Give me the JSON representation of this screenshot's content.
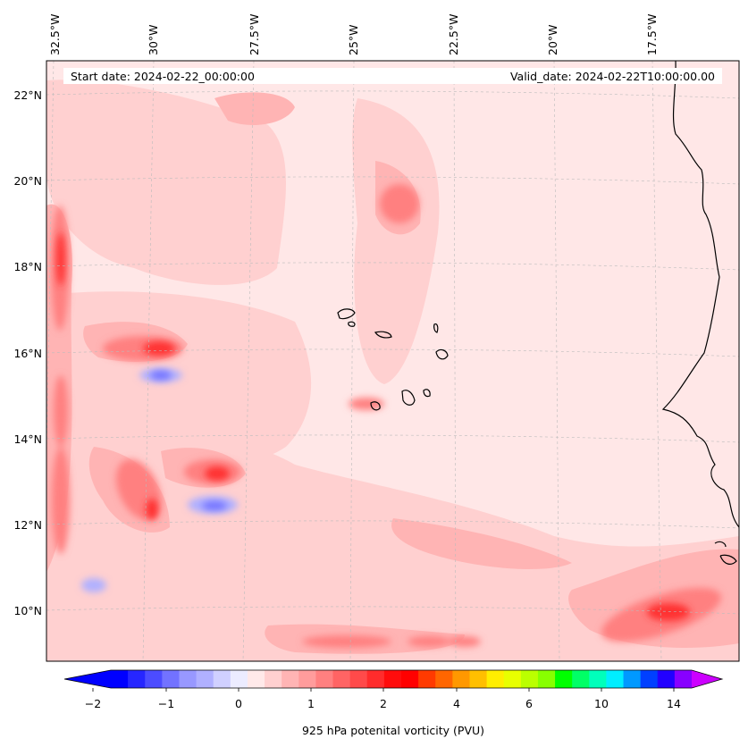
{
  "header": {
    "start_date": "Start date: 2024-02-22_00:00:00",
    "valid_date": "Valid_date: 2024-02-22T10:00:00.00"
  },
  "axes": {
    "lon_labels": [
      "32.5°W",
      "30°W",
      "27.5°W",
      "25°W",
      "22.5°W",
      "20°W",
      "17.5°W"
    ],
    "lat_labels": [
      "22°N",
      "20°N",
      "18°N",
      "16°N",
      "14°N",
      "12°N",
      "10°N"
    ]
  },
  "colorbar": {
    "label": "925 hPa potenital vorticity (PVU)",
    "tick_labels": [
      "−2",
      "−1",
      "0",
      "1",
      "2",
      "4",
      "6",
      "10",
      "14"
    ],
    "colors": [
      "#0000ff",
      "#2626ff",
      "#4c4cff",
      "#7272ff",
      "#9898ff",
      "#b0b0ff",
      "#d0d0ff",
      "#ececff",
      "#ffe9e9",
      "#ffd0d0",
      "#ffb4b4",
      "#ff9c9c",
      "#ff8080",
      "#ff6464",
      "#ff4a4a",
      "#ff2c2c",
      "#ff0c0c",
      "#ff0000",
      "#ff3a00",
      "#ff6600",
      "#ff9800",
      "#ffbf00",
      "#ffee00",
      "#e8ff00",
      "#bbff00",
      "#88ff00",
      "#00ff00",
      "#00ff66",
      "#00ffbb",
      "#00eeff",
      "#0099ff",
      "#0040ff",
      "#2200ff",
      "#8800ff"
    ],
    "extend_min_color": "#0000ff",
    "extend_max_color": "#cc00ff"
  },
  "map": {
    "background_color": "#ffe7e7",
    "coast_color": "#000000"
  }
}
